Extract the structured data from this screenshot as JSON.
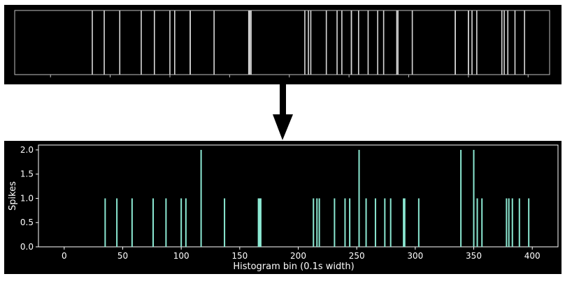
{
  "top_panel": {
    "description_free": true
  },
  "colors": {
    "background": "#000000",
    "page": "#ffffff",
    "raster_line": "#d9d9d9",
    "histogram_bar": "#8be8d2",
    "axis": "#ffffff",
    "arrow": "#000000"
  },
  "chart_data": [
    {
      "type": "raster",
      "spike_bins": [
        35,
        45,
        58,
        76,
        87,
        100,
        104,
        117,
        117,
        137,
        166,
        167,
        168,
        213,
        216,
        218,
        231,
        240,
        244,
        252,
        252,
        258,
        266,
        274,
        279,
        290,
        291,
        303,
        339,
        339,
        350,
        350,
        353,
        357,
        378,
        380,
        383,
        389,
        397
      ],
      "xlim": [
        -30,
        418
      ]
    },
    {
      "type": "bar",
      "title": "",
      "xlabel": "Histogram bin (0.1s width)",
      "ylabel": "Spikes",
      "xlim": [
        -22,
        422
      ],
      "ylim": [
        0,
        2.1
      ],
      "xticks": [
        "0",
        "50",
        "100",
        "150",
        "200",
        "250",
        "300",
        "350",
        "400"
      ],
      "yticks": [
        "0.0",
        "0.5",
        "1.0",
        "1.5",
        "2.0"
      ],
      "bars": [
        {
          "x": 35,
          "y": 1
        },
        {
          "x": 45,
          "y": 1
        },
        {
          "x": 58,
          "y": 1
        },
        {
          "x": 76,
          "y": 1
        },
        {
          "x": 87,
          "y": 1
        },
        {
          "x": 100,
          "y": 1
        },
        {
          "x": 104,
          "y": 1
        },
        {
          "x": 117,
          "y": 2
        },
        {
          "x": 137,
          "y": 1
        },
        {
          "x": 166,
          "y": 1
        },
        {
          "x": 167,
          "y": 1
        },
        {
          "x": 168,
          "y": 1
        },
        {
          "x": 213,
          "y": 1
        },
        {
          "x": 216,
          "y": 1
        },
        {
          "x": 218,
          "y": 1
        },
        {
          "x": 231,
          "y": 1
        },
        {
          "x": 240,
          "y": 1
        },
        {
          "x": 244,
          "y": 1
        },
        {
          "x": 252,
          "y": 2
        },
        {
          "x": 258,
          "y": 1
        },
        {
          "x": 266,
          "y": 1
        },
        {
          "x": 274,
          "y": 1
        },
        {
          "x": 279,
          "y": 1
        },
        {
          "x": 290,
          "y": 1
        },
        {
          "x": 291,
          "y": 1
        },
        {
          "x": 303,
          "y": 1
        },
        {
          "x": 339,
          "y": 2
        },
        {
          "x": 350,
          "y": 2
        },
        {
          "x": 353,
          "y": 1
        },
        {
          "x": 357,
          "y": 1
        },
        {
          "x": 378,
          "y": 1
        },
        {
          "x": 380,
          "y": 1
        },
        {
          "x": 383,
          "y": 1
        },
        {
          "x": 389,
          "y": 1
        },
        {
          "x": 397,
          "y": 1
        }
      ]
    }
  ]
}
